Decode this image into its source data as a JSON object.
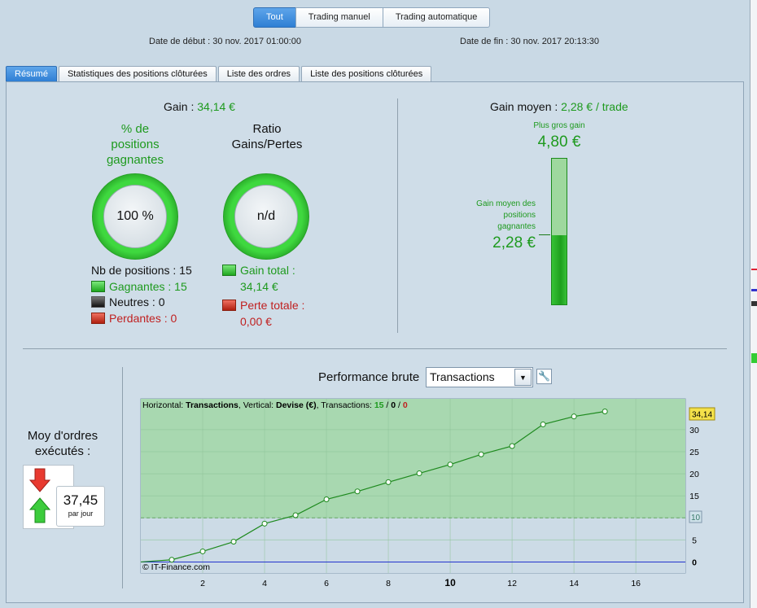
{
  "modes": [
    "Tout",
    "Trading manuel",
    "Trading automatique"
  ],
  "dates": {
    "start": "Date de début : 30 nov. 2017 01:00:00",
    "end": "Date de fin : 30 nov. 2017 20:13:30"
  },
  "tabs": [
    "Résumé",
    "Statistiques des positions clôturées",
    "Liste des ordres",
    "Liste des positions clôturées"
  ],
  "summary": {
    "gain_label": "Gain : ",
    "gain_value": "34,14 €",
    "win_pct_title_1": "% de",
    "win_pct_title_2": "positions",
    "win_pct_title_3": "gagnantes",
    "win_pct_value": "100 %",
    "ratio_title_1": "Ratio",
    "ratio_title_2": "Gains/Pertes",
    "ratio_value": "n/d",
    "nb_positions": "Nb de positions : 15",
    "gagnantes": "Gagnantes : 15",
    "neutres": "Neutres : 0",
    "perdantes": "Perdantes : 0",
    "gain_total_1": "Gain total :",
    "gain_total_2": "34,14 €",
    "perte_totale_1": "Perte totale :",
    "perte_totale_2": "0,00 €"
  },
  "average": {
    "label": "Gain moyen : ",
    "value": "2,28 € / trade",
    "max_label": "Plus gros gain",
    "max_value": "4,80 €",
    "avg_win_1": "Gain moyen des",
    "avg_win_2": "positions",
    "avg_win_3": "gagnantes",
    "avg_win_value": "2,28 €",
    "bar_fill_fraction": 0.475
  },
  "orders": {
    "title_1": "Moy d'ordres",
    "title_2": "exécutés :",
    "value": "37,45",
    "unit": "par jour"
  },
  "performance": {
    "title": "Performance brute",
    "select_value": "Transactions",
    "info_prefix": "Horizontal: ",
    "info_h": "Transactions",
    "info_mid": ", Vertical: ",
    "info_v": "Devise (€)",
    "info_tx": ", Transactions: ",
    "info_win": "15",
    "info_sep1": " / ",
    "info_neu": "0",
    "info_sep2": " / ",
    "info_lose": "0",
    "credit": "© IT-Finance.com",
    "last_value_label": "34,14",
    "avg_line_label": "10"
  },
  "chart_data": {
    "type": "line",
    "x": [
      0,
      1,
      2,
      3,
      4,
      5,
      6,
      7,
      8,
      9,
      10,
      11,
      12,
      13,
      14,
      15
    ],
    "values": [
      0,
      0.5,
      2.4,
      4.6,
      8.7,
      10.6,
      14.2,
      16.0,
      18.1,
      20.1,
      22.1,
      24.4,
      26.3,
      31.2,
      33.0,
      34.14
    ],
    "xlabel": "",
    "ylabel": "",
    "xlim": [
      0,
      17.6
    ],
    "ylim": [
      -2.5,
      37
    ],
    "x_ticks": [
      "2",
      "4",
      "6",
      "8",
      "10",
      "12",
      "14",
      "16"
    ],
    "y_ticks": [
      "0",
      "5",
      "10",
      "15",
      "20",
      "25",
      "30"
    ],
    "threshold": 10,
    "grid": true,
    "colors": {
      "line": "#1e8a1e",
      "fill": "#a8d8b0",
      "lower": "#ccdbe6",
      "zero": "#2233cc"
    }
  }
}
